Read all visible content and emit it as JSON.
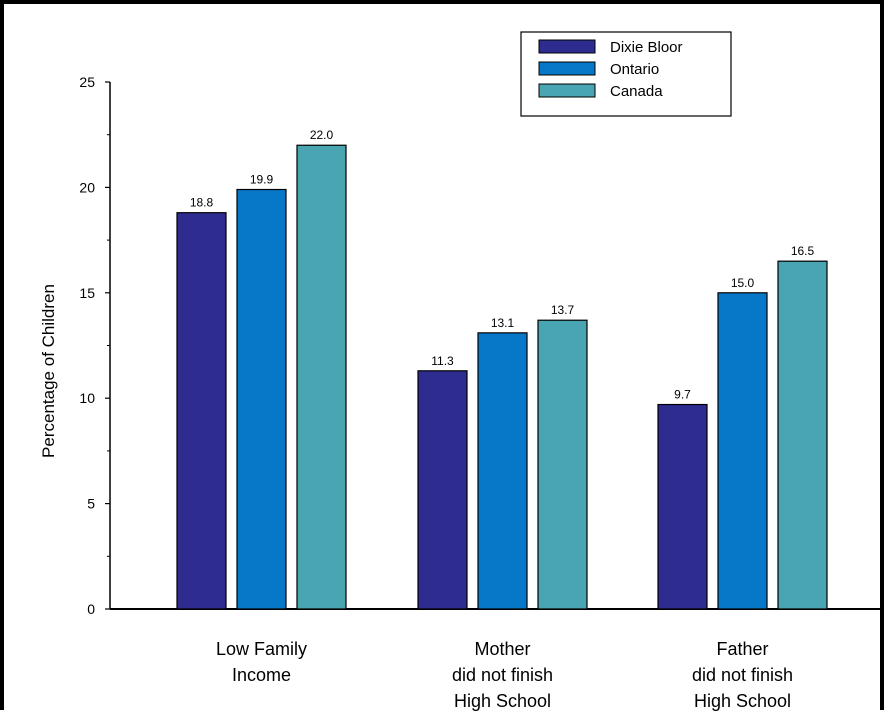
{
  "chart_data": {
    "type": "bar",
    "title": "",
    "xlabel": "",
    "ylabel": "Percentage of Children",
    "ylim": [
      0,
      25
    ],
    "yticks": [
      0,
      5,
      10,
      15,
      20,
      25
    ],
    "grid": false,
    "legend_position": "top-right",
    "categories": [
      [
        "Low Family",
        "Income"
      ],
      [
        "Mother",
        "did not finish",
        "High School"
      ],
      [
        "Father",
        "did not finish",
        "High School"
      ]
    ],
    "series": [
      {
        "name": "Dixie Bloor",
        "color": "#2e2d8f",
        "values": [
          18.8,
          11.3,
          9.7
        ],
        "labels": [
          "18.8",
          "11.3",
          "9.7"
        ]
      },
      {
        "name": "Ontario",
        "color": "#0778c7",
        "values": [
          19.9,
          13.1,
          15.0
        ],
        "labels": [
          "19.9",
          "13.1",
          "15.0"
        ]
      },
      {
        "name": "Canada",
        "color": "#48a5b1",
        "values": [
          22.0,
          13.7,
          16.5
        ],
        "labels": [
          "22.0",
          "13.7",
          "16.5"
        ]
      }
    ]
  }
}
